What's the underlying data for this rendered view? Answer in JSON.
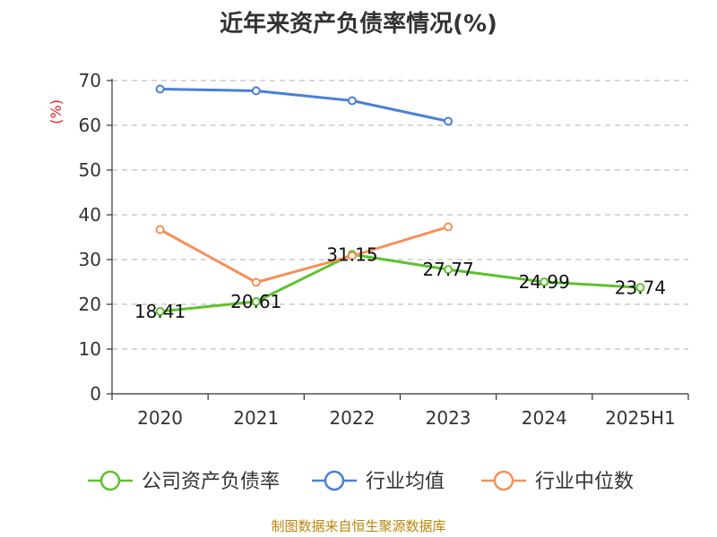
{
  "chart_data": {
    "type": "line",
    "title": "近年来资产负债率情况(%)",
    "ylabel": "(%)",
    "xlabel": "",
    "ylim": [
      0,
      70
    ],
    "yticks": [
      0,
      10,
      20,
      30,
      40,
      50,
      60,
      70
    ],
    "grid": true,
    "legend_position": "bottom",
    "categories": [
      "2020",
      "2021",
      "2022",
      "2023",
      "2024",
      "2025H1"
    ],
    "series": [
      {
        "name": "公司资产负债率",
        "color": "#5cc22e",
        "values": [
          18.41,
          20.61,
          31.15,
          27.77,
          24.99,
          23.74
        ],
        "labels": [
          "18.41",
          "20.61",
          "31.15",
          "27.77",
          "24.99",
          "23.74"
        ]
      },
      {
        "name": "行业均值",
        "color": "#4a7fd8",
        "values": [
          68.1,
          67.7,
          65.5,
          60.9,
          null,
          null
        ]
      },
      {
        "name": "行业中位数",
        "color": "#f5905a",
        "values": [
          36.7,
          24.9,
          30.8,
          37.3,
          null,
          null
        ]
      }
    ]
  },
  "footer": "制图数据来自恒生聚源数据库"
}
